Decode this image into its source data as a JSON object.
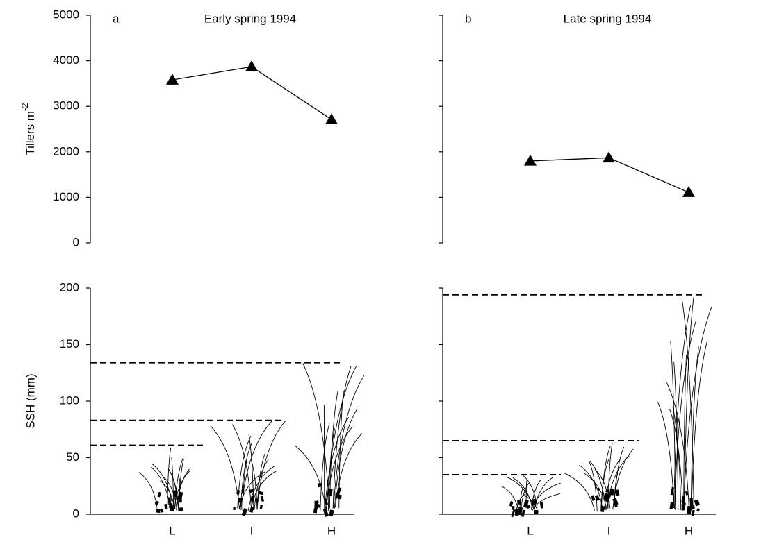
{
  "chart_data": [
    {
      "type": "line",
      "label": "a",
      "title": "Early spring 1994",
      "categories": [
        "L",
        "I",
        "H"
      ],
      "tillers": {
        "ylabel": {
          "text": "Tillers m",
          "superscript": "-2"
        },
        "ylim": [
          0,
          5000
        ],
        "yticks": [
          0,
          1000,
          2000,
          3000,
          4000,
          5000
        ],
        "tick_labels": true,
        "values": [
          3580,
          3870,
          2710
        ],
        "color": "#000000",
        "marker": "triangle"
      },
      "ssh": {
        "ylabel": "SSH (mm)",
        "ylim": [
          0,
          200
        ],
        "yticks": [
          0,
          50,
          100,
          150,
          200
        ],
        "tick_labels": true,
        "values": [
          61,
          83,
          134
        ],
        "color": "#000000",
        "line_style": "dashed"
      }
    },
    {
      "type": "line",
      "label": "b",
      "title": "Late spring 1994",
      "categories": [
        "L",
        "I",
        "H"
      ],
      "tillers": {
        "ylim": [
          0,
          5000
        ],
        "yticks": [
          0,
          1000,
          2000,
          3000,
          4000,
          5000
        ],
        "tick_labels": false,
        "values": [
          1800,
          1870,
          1110
        ],
        "color": "#000000",
        "marker": "triangle"
      },
      "ssh": {
        "ylim": [
          0,
          200
        ],
        "yticks": [
          0,
          50,
          100,
          150,
          200
        ],
        "tick_labels": false,
        "values": [
          35,
          65,
          194
        ],
        "color": "#000000",
        "line_style": "dashed"
      }
    }
  ]
}
